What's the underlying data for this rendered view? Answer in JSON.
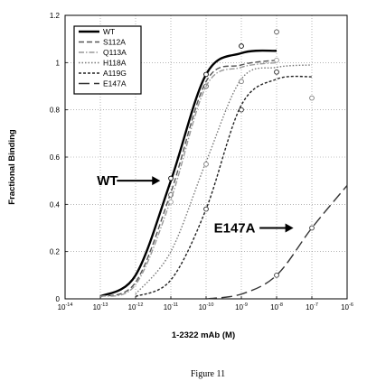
{
  "chart_data": {
    "type": "line",
    "xlabel": "1-2322 mAb (M)",
    "ylabel": "Fractional Binding",
    "x_scale": "log",
    "xlim": [
      1e-14,
      1e-06
    ],
    "ylim": [
      0,
      1.2
    ],
    "x_tick_exponents": [
      -14,
      -13,
      -12,
      -11,
      -10,
      -9,
      -8,
      -7,
      -6
    ],
    "x_tick_base": "10",
    "y_ticks": [
      "0",
      "0.2",
      "0.4",
      "0.6",
      "0.8",
      "1",
      "1.2"
    ],
    "grid": true,
    "legend_position": "top-left",
    "series": [
      {
        "name": "WT",
        "style": "solid",
        "color": "#000000",
        "points": [
          [
            1e-13,
            0.01
          ],
          [
            1e-12,
            0.1
          ],
          [
            1e-11,
            0.5
          ],
          [
            1e-10,
            0.95
          ],
          [
            1e-09,
            1.04
          ],
          [
            1e-08,
            1.05
          ]
        ],
        "markers": [
          [
            1e-11,
            0.51
          ],
          [
            1e-10,
            0.95
          ],
          [
            1e-09,
            1.07
          ]
        ]
      },
      {
        "name": "S112A",
        "style": "dash",
        "color": "#555555",
        "points": [
          [
            1e-13,
            0.01
          ],
          [
            1e-12,
            0.07
          ],
          [
            1e-11,
            0.45
          ],
          [
            1e-10,
            0.92
          ],
          [
            1e-09,
            0.99
          ],
          [
            1e-08,
            1.01
          ]
        ],
        "markers": [
          [
            1e-11,
            0.44
          ],
          [
            1e-10,
            0.9
          ],
          [
            1e-08,
            1.13
          ]
        ]
      },
      {
        "name": "Q113A",
        "style": "dash-dot",
        "color": "#999999",
        "points": [
          [
            1e-13,
            0.01
          ],
          [
            1e-12,
            0.06
          ],
          [
            1e-11,
            0.42
          ],
          [
            1e-10,
            0.9
          ],
          [
            1e-09,
            0.98
          ],
          [
            1e-08,
            1.0
          ]
        ],
        "markers": [
          [
            1e-11,
            0.41
          ],
          [
            1e-08,
            1.01
          ]
        ]
      },
      {
        "name": "H118A",
        "style": "dot",
        "color": "#777777",
        "points": [
          [
            1e-12,
            0.02
          ],
          [
            1e-11,
            0.2
          ],
          [
            1e-10,
            0.58
          ],
          [
            1e-09,
            0.93
          ],
          [
            1e-08,
            0.98
          ],
          [
            1e-07,
            0.99
          ]
        ],
        "markers": [
          [
            1e-10,
            0.57
          ],
          [
            1e-09,
            0.92
          ],
          [
            1e-07,
            0.85
          ]
        ]
      },
      {
        "name": "A119G",
        "style": "short-dash",
        "color": "#222222",
        "points": [
          [
            1e-12,
            0.01
          ],
          [
            1e-11,
            0.08
          ],
          [
            1e-10,
            0.38
          ],
          [
            1e-09,
            0.82
          ],
          [
            1e-08,
            0.93
          ],
          [
            1e-07,
            0.94
          ]
        ],
        "markers": [
          [
            1e-10,
            0.38
          ],
          [
            1e-09,
            0.8
          ],
          [
            1e-08,
            0.96
          ]
        ]
      },
      {
        "name": "E147A",
        "style": "long-dash",
        "color": "#333333",
        "points": [
          [
            1e-10,
            0.0
          ],
          [
            1e-09,
            0.02
          ],
          [
            1e-08,
            0.1
          ],
          [
            1e-07,
            0.3
          ],
          [
            1e-06,
            0.48
          ]
        ],
        "markers": [
          [
            1e-08,
            0.1
          ],
          [
            1e-07,
            0.3
          ]
        ]
      }
    ],
    "annotations": [
      {
        "text": "WT",
        "arrow_target": [
          5e-12,
          0.5
        ]
      },
      {
        "text": "E147A",
        "arrow_target": [
          3e-08,
          0.3
        ]
      }
    ]
  },
  "caption": "Figure 11"
}
